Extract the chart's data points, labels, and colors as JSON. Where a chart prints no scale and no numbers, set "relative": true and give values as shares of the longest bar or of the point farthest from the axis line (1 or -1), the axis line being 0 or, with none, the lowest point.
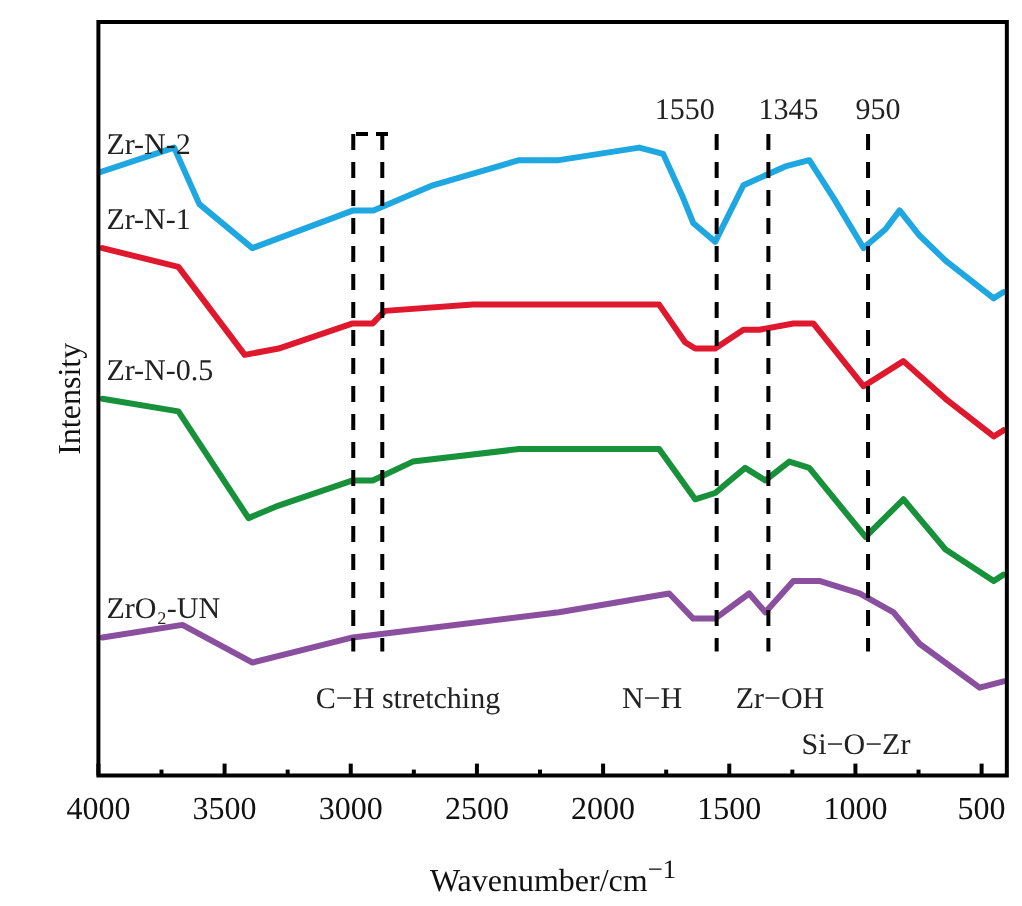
{
  "chart_data": {
    "type": "line",
    "relative": true,
    "xlabel": "Wavenumber/cm$^{−1}$",
    "ylabel": "Intensity",
    "xlim": [
      4000,
      400
    ],
    "xticks": [
      4000,
      {
        "value": 3750,
        "label": null
      },
      3500,
      {
        "value": 3250,
        "label": null
      },
      3000,
      {
        "value": 2750,
        "label": null
      },
      2500,
      {
        "value": 2250,
        "label": null
      },
      2000,
      {
        "value": 1750,
        "label": null
      },
      1500,
      {
        "value": 1250,
        "label": null
      },
      1000,
      {
        "value": 750,
        "label": null
      },
      500
    ],
    "grid": false,
    "legend": false,
    "marker": "none",
    "line_style": "solid",
    "series": [
      {
        "name": "Zr-N-2",
        "color": "#1ea7e1",
        "x": [
          4000,
          3700,
          3600,
          3390,
          2990,
          2910,
          2675,
          2333,
          2175,
          1857,
          1762,
          1683,
          1643,
          1556,
          1444,
          1278,
          1183,
          1087,
          968,
          881,
          825,
          746,
          643,
          452,
          413
        ],
        "values": [
          0.96,
          1.0,
          0.91,
          0.84,
          0.9,
          0.9,
          0.94,
          0.98,
          0.98,
          1.0,
          0.99,
          0.92,
          0.88,
          0.85,
          0.94,
          0.97,
          0.98,
          0.92,
          0.84,
          0.87,
          0.9,
          0.86,
          0.82,
          0.76,
          0.77
        ]
      },
      {
        "name": "Zr-N-1",
        "color": "#e0182d",
        "x": [
          3984,
          3683,
          3420,
          3286,
          2992,
          2913,
          2865,
          2516,
          2333,
          1778,
          1675,
          1635,
          1556,
          1444,
          1381,
          1246,
          1167,
          968,
          810,
          643,
          452,
          413
        ],
        "values": [
          0.84,
          0.81,
          0.67,
          0.68,
          0.72,
          0.72,
          0.74,
          0.75,
          0.75,
          0.75,
          0.69,
          0.68,
          0.68,
          0.71,
          0.71,
          0.72,
          0.72,
          0.62,
          0.66,
          0.6,
          0.54,
          0.55
        ]
      },
      {
        "name": "Zr-N-0.5",
        "color": "#17913a",
        "x": [
          3984,
          3683,
          3405,
          3286,
          2992,
          2913,
          2754,
          2333,
          2175,
          1778,
          1635,
          1556,
          1437,
          1357,
          1262,
          1183,
          960,
          810,
          643,
          452,
          413
        ],
        "values": [
          0.6,
          0.58,
          0.41,
          0.43,
          0.47,
          0.47,
          0.5,
          0.52,
          0.52,
          0.52,
          0.44,
          0.45,
          0.49,
          0.47,
          0.5,
          0.49,
          0.38,
          0.44,
          0.36,
          0.31,
          0.32
        ]
      },
      {
        "name": "ZrO₂-UN",
        "color": "#8a4f9e",
        "x": [
          3984,
          3667,
          3389,
          2992,
          2175,
          1738,
          1643,
          1556,
          1421,
          1357,
          1246,
          1143,
          984,
          849,
          746,
          508,
          413
        ],
        "values": [
          0.22,
          0.24,
          0.18,
          0.22,
          0.26,
          0.29,
          0.25,
          0.25,
          0.29,
          0.26,
          0.31,
          0.31,
          0.29,
          0.26,
          0.21,
          0.14,
          0.15
        ]
      }
    ],
    "ref_lines": [
      {
        "axis": "x",
        "value": 1550,
        "label": "1550",
        "line_style": "dashed"
      },
      {
        "axis": "x",
        "value": 1345,
        "label": "1345",
        "line_style": "dashed"
      },
      {
        "axis": "x",
        "value": 950,
        "label": "950",
        "line_style": "dashed"
      },
      {
        "axis": "x",
        "value": 2990,
        "line_style": "dashed"
      },
      {
        "axis": "x",
        "value": 2875,
        "line_style": "dashed"
      }
    ],
    "annotations": [
      "C−H stretching",
      "N−H",
      "Zr−OH",
      "Si−O−Zr"
    ]
  }
}
